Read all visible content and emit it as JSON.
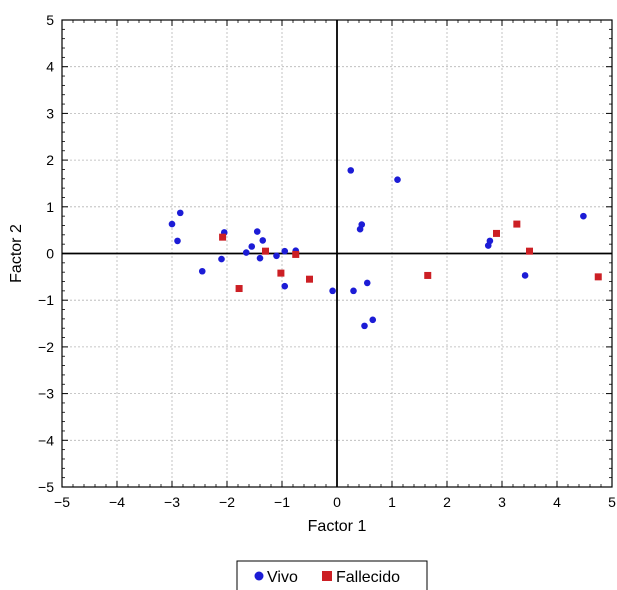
{
  "chart_data": {
    "type": "scatter",
    "xlabel": "Factor 1",
    "ylabel": "Factor 2",
    "xlim": [
      -5,
      5
    ],
    "ylim": [
      -5,
      5
    ],
    "xticks": [
      "−5",
      "−4",
      "−3",
      "−2",
      "−1",
      "0",
      "1",
      "2",
      "3",
      "4",
      "5"
    ],
    "yticks": [
      "5",
      "4",
      "3",
      "2",
      "1",
      "0",
      "−1",
      "−2",
      "−3",
      "−4",
      "−5"
    ],
    "grid": true,
    "zero_lines": true,
    "legend_position": "bottom-center",
    "series": [
      {
        "name": "Vivo",
        "marker": "circle",
        "color": "#1c1cd6",
        "points": [
          [
            -3.0,
            0.63
          ],
          [
            -2.85,
            0.87
          ],
          [
            -2.9,
            0.27
          ],
          [
            -2.45,
            -0.38
          ],
          [
            -2.05,
            0.45
          ],
          [
            -2.1,
            -0.12
          ],
          [
            -1.65,
            0.02
          ],
          [
            -1.55,
            0.15
          ],
          [
            -1.45,
            0.47
          ],
          [
            -1.35,
            0.28
          ],
          [
            -1.4,
            -0.1
          ],
          [
            -1.1,
            -0.05
          ],
          [
            -0.95,
            0.05
          ],
          [
            -0.75,
            0.06
          ],
          [
            -0.95,
            -0.7
          ],
          [
            -0.08,
            -0.8
          ],
          [
            0.25,
            1.78
          ],
          [
            0.45,
            0.62
          ],
          [
            0.42,
            0.52
          ],
          [
            0.3,
            -0.8
          ],
          [
            0.55,
            -0.63
          ],
          [
            0.5,
            -1.55
          ],
          [
            0.65,
            -1.42
          ],
          [
            1.1,
            1.58
          ],
          [
            2.75,
            0.17
          ],
          [
            2.78,
            0.27
          ],
          [
            3.42,
            -0.47
          ],
          [
            4.48,
            0.8
          ]
        ]
      },
      {
        "name": "Fallecido",
        "marker": "square",
        "color": "#cc1f24",
        "points": [
          [
            -2.08,
            0.35
          ],
          [
            -1.78,
            -0.75
          ],
          [
            -1.3,
            0.05
          ],
          [
            -1.02,
            -0.42
          ],
          [
            -0.75,
            -0.02
          ],
          [
            -0.5,
            -0.55
          ],
          [
            1.65,
            -0.47
          ],
          [
            2.9,
            0.43
          ],
          [
            3.27,
            0.63
          ],
          [
            3.5,
            0.05
          ],
          [
            4.75,
            -0.5
          ]
        ]
      }
    ]
  }
}
